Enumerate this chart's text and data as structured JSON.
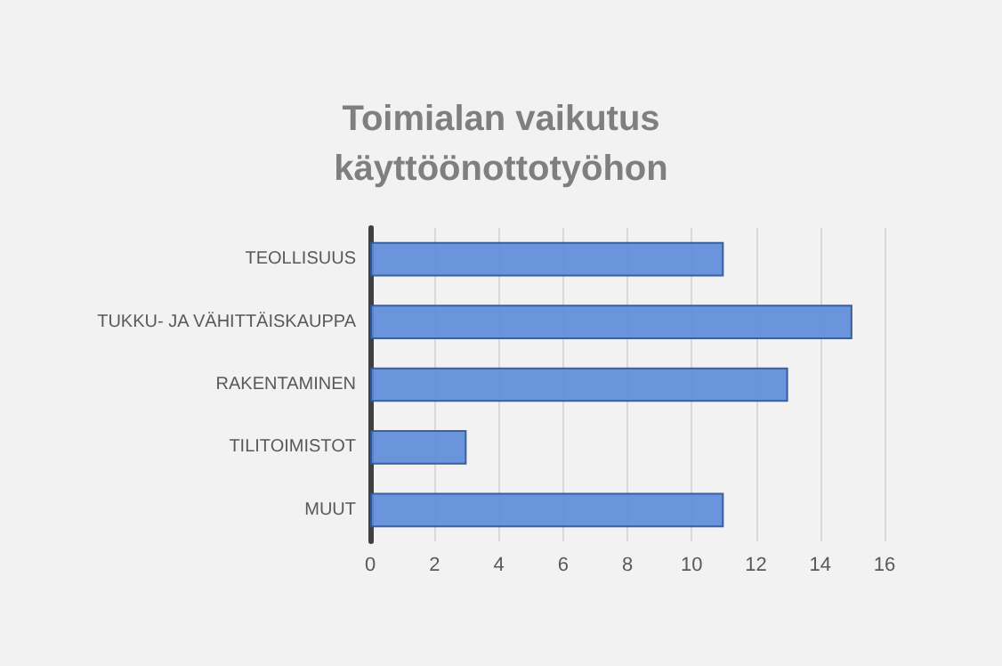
{
  "chart_data": {
    "type": "bar",
    "orientation": "horizontal",
    "title": "Toimialan vaikutus\nkäyttöönottotyöhon",
    "categories": [
      "TEOLLISUUS",
      "TUKKU- JA VÄHITTÄISKAUPPA",
      "RAKENTAMINEN",
      "TILITOIMISTOT",
      "MUUT"
    ],
    "values": [
      11,
      15,
      13,
      3,
      11
    ],
    "color": "#5b8ad8",
    "xlim": [
      0,
      16
    ],
    "xticks": [
      0,
      2,
      4,
      6,
      8,
      10,
      12,
      14,
      16
    ],
    "grid": "x"
  }
}
